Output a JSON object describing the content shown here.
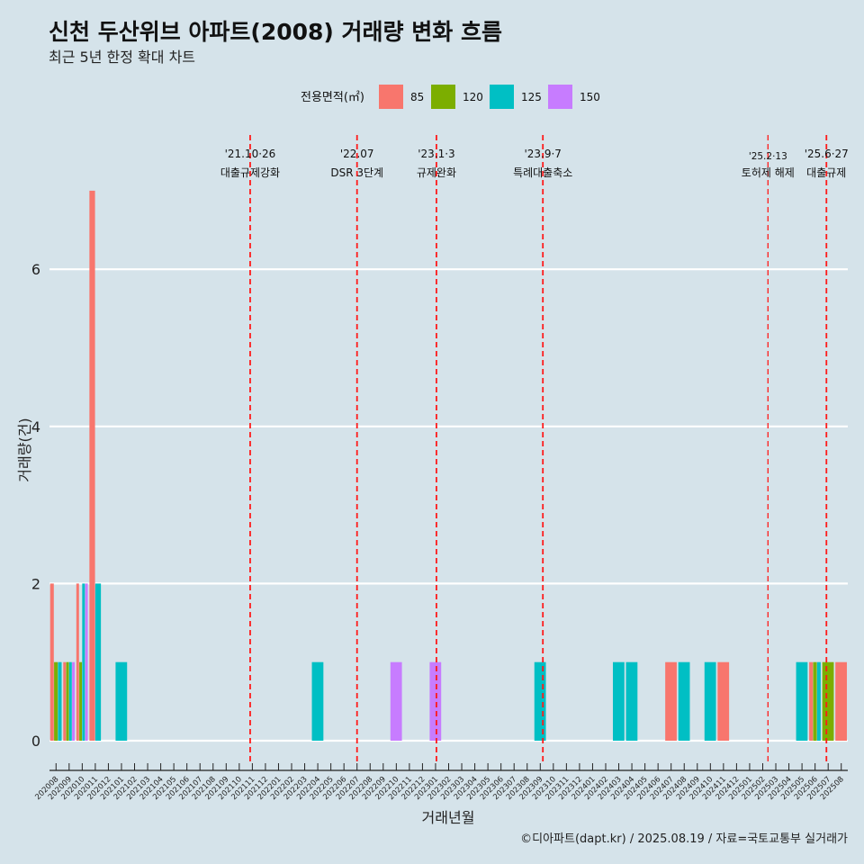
{
  "header": {
    "title": "신천 두산위브 아파트(2008) 거래량 변화 흐름",
    "subtitle": "최근 5년 한정 확대 차트"
  },
  "legend": {
    "title": "전용면적(㎡)",
    "items": [
      {
        "label": "85",
        "color": "#f8766d"
      },
      {
        "label": "120",
        "color": "#7cae00"
      },
      {
        "label": "125",
        "color": "#00bfc4"
      },
      {
        "label": "150",
        "color": "#c77cff"
      }
    ]
  },
  "caption": "©디아파트(dapt.kr) / 2025.08.19 / 자료=국토교통부 실거래가",
  "chart_data": {
    "type": "bar",
    "xlabel": "거래년월",
    "ylabel": "거래량(건)",
    "ylim": [
      0,
      7
    ],
    "yticks": [
      0,
      2,
      4,
      6
    ],
    "grid": true,
    "legend_position": "top",
    "categories": [
      "202008",
      "202009",
      "202010",
      "202011",
      "202012",
      "202101",
      "202102",
      "202103",
      "202104",
      "202105",
      "202106",
      "202107",
      "202108",
      "202109",
      "202110",
      "202111",
      "202112",
      "202201",
      "202202",
      "202203",
      "202204",
      "202205",
      "202206",
      "202207",
      "202208",
      "202209",
      "202210",
      "202211",
      "202212",
      "202301",
      "202302",
      "202303",
      "202304",
      "202305",
      "202306",
      "202307",
      "202308",
      "202309",
      "202310",
      "202311",
      "202312",
      "202401",
      "202402",
      "202403",
      "202404",
      "202405",
      "202406",
      "202407",
      "202408",
      "202409",
      "202410",
      "202411",
      "202412",
      "202501",
      "202502",
      "202503",
      "202504",
      "202505",
      "202506",
      "202507",
      "202508"
    ],
    "series": [
      {
        "name": "85",
        "color": "#f8766d",
        "points": [
          {
            "x": "202008",
            "y": 2
          },
          {
            "x": "202009",
            "y": 1
          },
          {
            "x": "202010",
            "y": 2
          },
          {
            "x": "202011",
            "y": 7
          },
          {
            "x": "202407",
            "y": 1
          },
          {
            "x": "202411",
            "y": 1
          },
          {
            "x": "202506",
            "y": 1
          },
          {
            "x": "202508",
            "y": 1
          }
        ]
      },
      {
        "name": "120",
        "color": "#7cae00",
        "points": [
          {
            "x": "202008",
            "y": 1
          },
          {
            "x": "202009",
            "y": 1
          },
          {
            "x": "202010",
            "y": 1
          },
          {
            "x": "202506",
            "y": 1
          },
          {
            "x": "202507",
            "y": 1
          }
        ]
      },
      {
        "name": "125",
        "color": "#00bfc4",
        "points": [
          {
            "x": "202008",
            "y": 1
          },
          {
            "x": "202009",
            "y": 1
          },
          {
            "x": "202010",
            "y": 2
          },
          {
            "x": "202011",
            "y": 2
          },
          {
            "x": "202101",
            "y": 1
          },
          {
            "x": "202204",
            "y": 1
          },
          {
            "x": "202309",
            "y": 1
          },
          {
            "x": "202403",
            "y": 1
          },
          {
            "x": "202404",
            "y": 1
          },
          {
            "x": "202408",
            "y": 1
          },
          {
            "x": "202410",
            "y": 1
          },
          {
            "x": "202505",
            "y": 1
          },
          {
            "x": "202506",
            "y": 1
          }
        ]
      },
      {
        "name": "150",
        "color": "#c77cff",
        "points": [
          {
            "x": "202009",
            "y": 1
          },
          {
            "x": "202010",
            "y": 2
          },
          {
            "x": "202210",
            "y": 1
          },
          {
            "x": "202301",
            "y": 1
          }
        ]
      }
    ],
    "events": [
      {
        "x": "2021-10-26",
        "date_label": "'21.10·26",
        "label": "대출규제강화"
      },
      {
        "x": "2022-07-01",
        "date_label": "'22.07",
        "label": "DSR 3단계"
      },
      {
        "x": "2023-01-03",
        "date_label": "'23.1·3",
        "label": "규제완화"
      },
      {
        "x": "2023-09-07",
        "date_label": "'23.9·7",
        "label": "특례대출축소"
      },
      {
        "x": "2025-02-13",
        "date_label": "'25.2·13",
        "label": "토허제 해제"
      },
      {
        "x": "2025-06-27",
        "date_label": "'25.6·27",
        "label": "대출규제"
      }
    ]
  }
}
